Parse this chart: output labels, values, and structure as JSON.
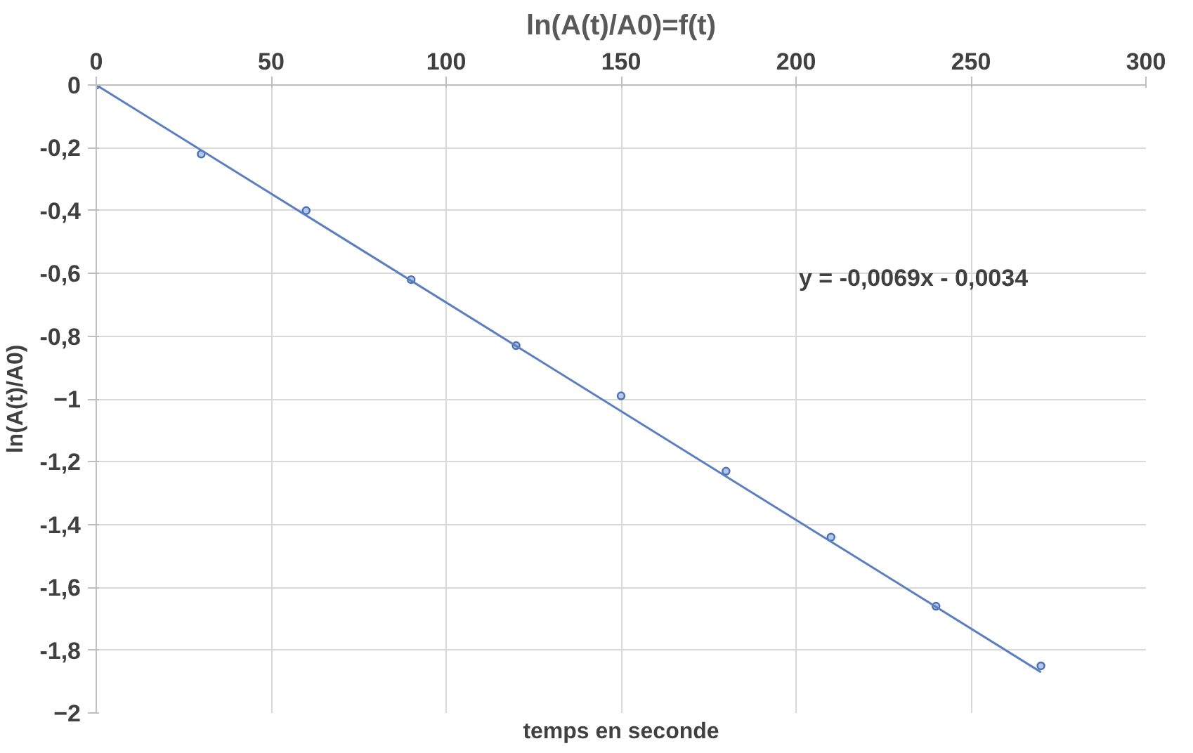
{
  "chart_data": {
    "type": "scatter",
    "title": "ln(A(t)/A0)=f(t)",
    "xlabel": "temps en seconde",
    "ylabel": "ln(A(t)/A0)",
    "series": [
      {
        "color": "#4a6fb5",
        "x": [
          0,
          30,
          60,
          90,
          120,
          150,
          180,
          210,
          240,
          270
        ],
        "values": [
          0,
          -0.22,
          -0.4,
          -0.62,
          -0.83,
          -0.99,
          -1.23,
          -1.44,
          -1.66,
          -1.85
        ]
      },
      {
        "type": "line",
        "marker": "none",
        "color": "#5b7fbf",
        "x": [
          0,
          270
        ],
        "values": [
          0,
          -1.87
        ]
      }
    ],
    "annotations": [
      "y = -0,0069x - 0,0034"
    ],
    "xlim": [
      0,
      300
    ],
    "xticks": [
      0,
      50,
      100,
      150,
      200,
      250,
      300
    ],
    "ylim": [
      -2,
      0
    ],
    "yticks": [
      0,
      {
        "value": -0.2,
        "label": "-0,2"
      },
      {
        "value": -0.4,
        "label": "-0,4"
      },
      {
        "value": -0.6,
        "label": "-0,6"
      },
      {
        "value": -0.8,
        "label": "-0,8"
      },
      -1,
      {
        "value": -1.2,
        "label": "-1,2"
      },
      {
        "value": -1.4,
        "label": "-1,4"
      },
      {
        "value": -1.6,
        "label": "-1,6"
      },
      {
        "value": -1.8,
        "label": "-1,8"
      },
      -2
    ],
    "grid": true,
    "marker": "circle",
    "line_style": "solid"
  }
}
